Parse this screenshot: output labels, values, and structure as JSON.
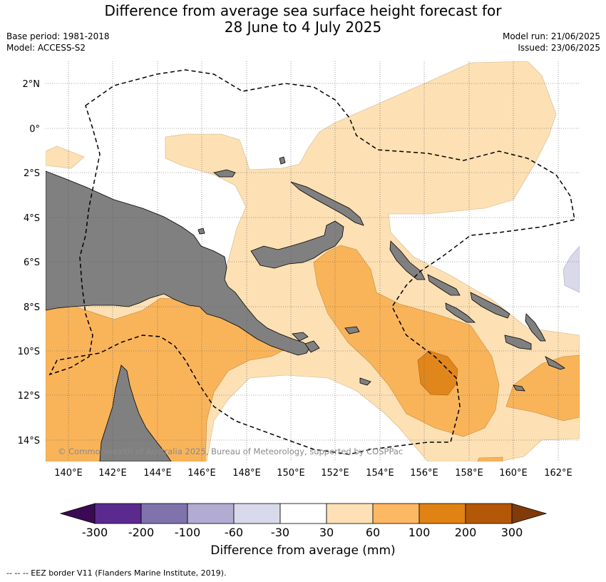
{
  "header": {
    "title_line1": "Difference from average sea surface height forecast for",
    "title_line2": "28 June to 4 July 2025",
    "base_period": "Base period: 1981-2018",
    "model": "Model: ACCESS-S2",
    "model_run": "Model run: 21/06/2025",
    "issued": "Issued: 23/06/2025"
  },
  "map": {
    "lon_ticks": [
      "140°E",
      "142°E",
      "144°E",
      "146°E",
      "148°E",
      "150°E",
      "152°E",
      "154°E",
      "156°E",
      "158°E",
      "160°E",
      "162°E"
    ],
    "lat_ticks": [
      "2°N",
      "0°",
      "2°S",
      "4°S",
      "6°S",
      "8°S",
      "10°S",
      "12°S",
      "14°S"
    ],
    "copyright": "© Commonwealth of Australia 2025, Bureau of Meteorology, supported by COSPPac",
    "colors": {
      "land": "#808080",
      "c30_60": "#fde0b4",
      "c60_100": "#f9b45a",
      "c100_200": "#e0861b",
      "cneg30_60": "#d9d9ea",
      "eez": "#000000"
    }
  },
  "colorbar": {
    "labels": [
      "-300",
      "-200",
      "-100",
      "-60",
      "-30",
      "30",
      "60",
      "100",
      "200",
      "300"
    ],
    "colors": [
      "#3b0a55",
      "#5b2a8e",
      "#8073ac",
      "#b2abd2",
      "#d8daeb",
      "#ffffff",
      "#fee0b6",
      "#fdb863",
      "#e08214",
      "#b35806",
      "#7f3b08"
    ],
    "title": "Difference from average (mm)"
  },
  "footer": {
    "legend": "--  --  -- EEZ border V11 (Flanders Marine Institute, 2019)."
  }
}
